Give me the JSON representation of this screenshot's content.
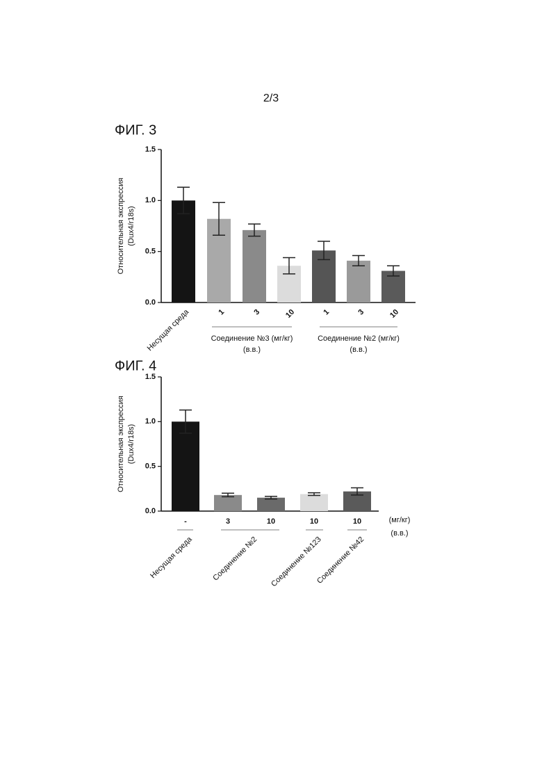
{
  "page_number": "2/3",
  "chart_data": [
    {
      "type": "bar",
      "title": "ФИГ. 3",
      "ylabel": [
        "Относительная экспрессия",
        "(Dux4/r18s)"
      ],
      "categories": [
        "Несущая среда",
        "1",
        "3",
        "10",
        "1",
        "3",
        "10"
      ],
      "values": [
        1.0,
        0.82,
        0.71,
        0.36,
        0.51,
        0.41,
        0.31
      ],
      "errors": [
        0.13,
        0.16,
        0.06,
        0.08,
        0.09,
        0.05,
        0.05
      ],
      "colors": [
        "#141414",
        "#a9a9a9",
        "#8a8a8a",
        "#dcdcdc",
        "#555555",
        "#9a9a9a",
        "#5a5a5a"
      ],
      "groups": [
        [
          "Соединение №3 (мг/кг)",
          "(в.в.)"
        ],
        [
          "Соединение №2 (мг/кг)",
          "(в.в.)"
        ]
      ],
      "ylim": [
        0,
        1.5
      ],
      "yticks": [
        {
          "value": 0,
          "label": "0.0"
        },
        0.5,
        {
          "value": 1,
          "label": "1.0"
        },
        1.5
      ]
    },
    {
      "type": "bar",
      "title": "ФИГ. 4",
      "ylabel": [
        "Относительная экспрессия",
        "(Dux4/r18s)"
      ],
      "categories": [
        "-",
        "3",
        "10",
        "10",
        "10"
      ],
      "values": [
        1.0,
        0.18,
        0.15,
        0.19,
        0.22
      ],
      "errors": [
        0.13,
        0.02,
        0.015,
        0.015,
        0.04
      ],
      "colors": [
        "#141414",
        "#8a8a8a",
        "#6a6a6a",
        "#dcdcdc",
        "#5a5a5a"
      ],
      "unit_label": [
        "(мг/кг)",
        "(в.в.)"
      ],
      "groups": [
        "Несущая среда",
        "Соединение №2",
        "Соединение №123",
        "Соединение №42"
      ],
      "ylim": [
        0,
        1.5
      ],
      "yticks": [
        {
          "value": 0,
          "label": "0.0"
        },
        0.5,
        {
          "value": 1,
          "label": "1.0"
        },
        1.5
      ]
    }
  ]
}
